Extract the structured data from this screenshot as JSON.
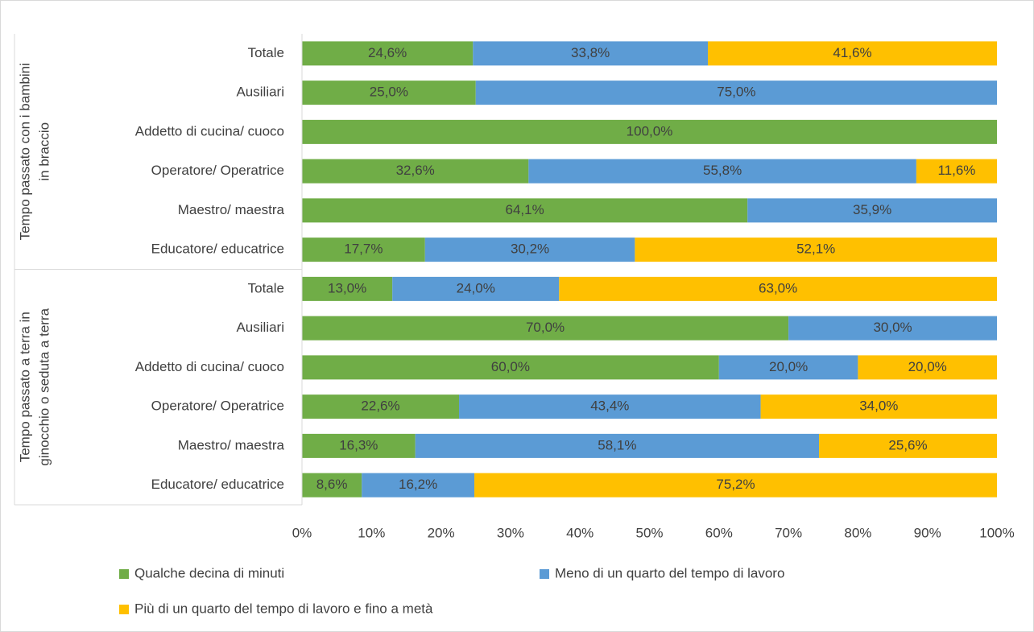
{
  "chart_data": {
    "type": "stacked_barh",
    "group_labels": [
      [
        "Tempo passato con i bambini",
        "in braccio"
      ],
      [
        "Tempo passato a terra in",
        "ginocchio o seduta a terra"
      ]
    ],
    "categories": [
      "Totale",
      "Ausiliari",
      "Addetto di cucina/ cuoco",
      "Operatore/ Operatrice",
      "Maestro/ maestra",
      "Educatore/ educatrice",
      "Totale",
      "Ausiliari",
      "Addetto di cucina/ cuoco",
      "Operatore/ Operatrice",
      "Maestro/ maestra",
      "Educatore/ educatrice"
    ],
    "series": [
      {
        "name": "Qualche decina di minuti",
        "color": "#70ad47",
        "values": [
          24.6,
          25.0,
          100.0,
          32.6,
          64.1,
          17.7,
          13.0,
          70.0,
          60.0,
          22.6,
          16.3,
          8.6
        ],
        "value_labels": [
          "24,6%",
          "25,0%",
          "100,0%",
          "32,6%",
          "64,1%",
          "17,7%",
          "13,0%",
          "70,0%",
          "60,0%",
          "22,6%",
          "16,3%",
          "8,6%"
        ]
      },
      {
        "name": "Meno di un quarto del tempo di lavoro",
        "color": "#5b9bd5",
        "values": [
          33.8,
          75.0,
          null,
          55.8,
          35.9,
          30.2,
          24.0,
          30.0,
          20.0,
          43.4,
          58.1,
          16.2
        ],
        "value_labels": [
          "33,8%",
          "75,0%",
          null,
          "55,8%",
          "35,9%",
          "30,2%",
          "24,0%",
          "30,0%",
          "20,0%",
          "43,4%",
          "58,1%",
          "16,2%"
        ]
      },
      {
        "name": "Più di un quarto del tempo di lavoro e fino a metà",
        "color": "#ffc000",
        "values": [
          41.6,
          null,
          null,
          11.6,
          null,
          52.1,
          63.0,
          null,
          20.0,
          34.0,
          25.6,
          75.2
        ],
        "value_labels": [
          "41,6%",
          null,
          null,
          "11,6%",
          null,
          "52,1%",
          "63,0%",
          null,
          "20,0%",
          "34,0%",
          "25,6%",
          "75,2%"
        ]
      }
    ],
    "xlim": [
      0,
      100
    ],
    "xticks": [
      {
        "value": 0,
        "label": "0%"
      },
      {
        "value": 10,
        "label": "10%"
      },
      {
        "value": 20,
        "label": "20%"
      },
      {
        "value": 30,
        "label": "30%"
      },
      {
        "value": 40,
        "label": "40%"
      },
      {
        "value": 50,
        "label": "50%"
      },
      {
        "value": 60,
        "label": "60%"
      },
      {
        "value": 70,
        "label": "70%"
      },
      {
        "value": 80,
        "label": "80%"
      },
      {
        "value": 90,
        "label": "90%"
      },
      {
        "value": 100,
        "label": "100%"
      }
    ],
    "legend": "bottom"
  }
}
